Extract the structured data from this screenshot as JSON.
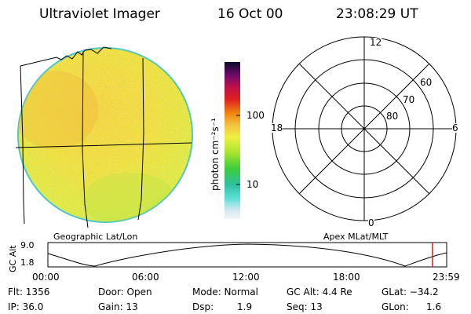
{
  "header": {
    "title": "Ultraviolet Imager",
    "date": "16 Oct 00",
    "time": "23:08:29 UT"
  },
  "colorbar": {
    "unit_label": "photon cm⁻²s⁻¹",
    "ticks": [
      "100",
      "10"
    ]
  },
  "polar_plot": {
    "mlt_labels": [
      "12",
      "18",
      "6",
      "0"
    ],
    "mlat_labels": [
      "60",
      "70",
      "80"
    ]
  },
  "timeline": {
    "left_title": "Geographic Lat/Lon",
    "right_title": "Apex MLat/MLT",
    "axis_label": "GC Alt",
    "y_ticks": [
      "9.0",
      "1.8"
    ],
    "x_ticks": [
      "00:00",
      "06:00",
      "12:00",
      "18:00",
      "23:59"
    ],
    "marker_color": "#cc2222",
    "marker_time_fraction": 0.9645
  },
  "status": {
    "flt": "Flt: 1356",
    "ip": "IP: 36.0",
    "door": "Door: Open",
    "gain": "Gain: 13",
    "mode": "Mode: Normal",
    "dsp_label": "Dsp:",
    "dsp_value": "1.9",
    "gc_alt": "GC Alt: 4.4 Re",
    "seq": "Seq: 13",
    "glat": "GLat: −34.2",
    "glon_label": "GLon:",
    "glon_value": "1.6"
  }
}
